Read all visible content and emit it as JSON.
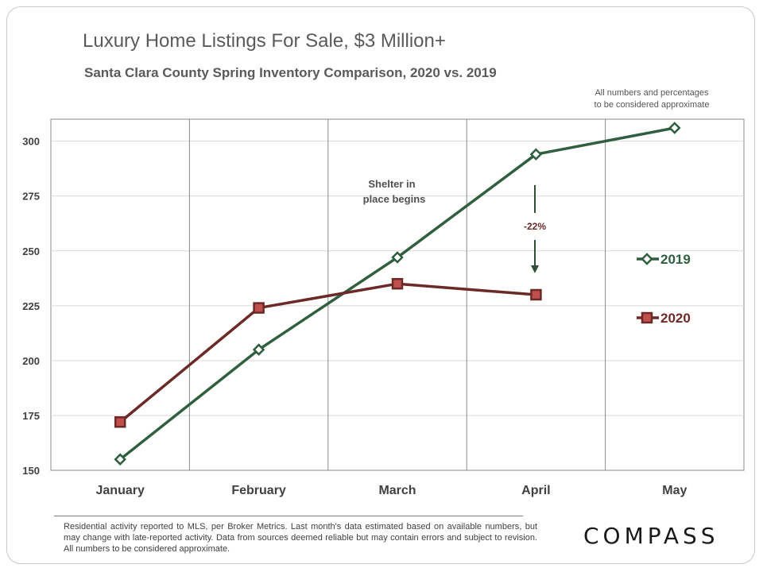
{
  "header": {
    "title": "Luxury Home Listings For Sale, $3 Million+",
    "subtitle": "Santa Clara County Spring Inventory Comparison,  2020 vs. 2019",
    "note_line1": "All numbers and percentages",
    "note_line2": "to be considered approximate"
  },
  "chart_data": {
    "type": "line",
    "categories": [
      "January",
      "February",
      "March",
      "April",
      "May"
    ],
    "ylim": [
      150,
      310
    ],
    "yticks": [
      150,
      175,
      200,
      225,
      250,
      275,
      300
    ],
    "grid": "vertical and horizontal",
    "legend_placement": "right",
    "series": [
      {
        "name": "2019",
        "color": "#2f5f3e",
        "marker": "diamond",
        "values": [
          155,
          205,
          247,
          294,
          306
        ]
      },
      {
        "name": "2020",
        "color": "#6b2a27",
        "marker": "square",
        "values": [
          172,
          224,
          235,
          230,
          null
        ]
      }
    ],
    "annotations": {
      "shelter_line1": "Shelter in",
      "shelter_line2": "place  begins",
      "change_label": "-22%"
    }
  },
  "footer": {
    "disclaimer": "Residential activity reported to MLS, per Broker Metrics. Last month's data estimated based on available numbers, but may change with late-reported activity. Data from sources deemed reliable but may contain errors and subject to revision. All numbers to be considered approximate.",
    "logo_text": "COMPASS"
  }
}
